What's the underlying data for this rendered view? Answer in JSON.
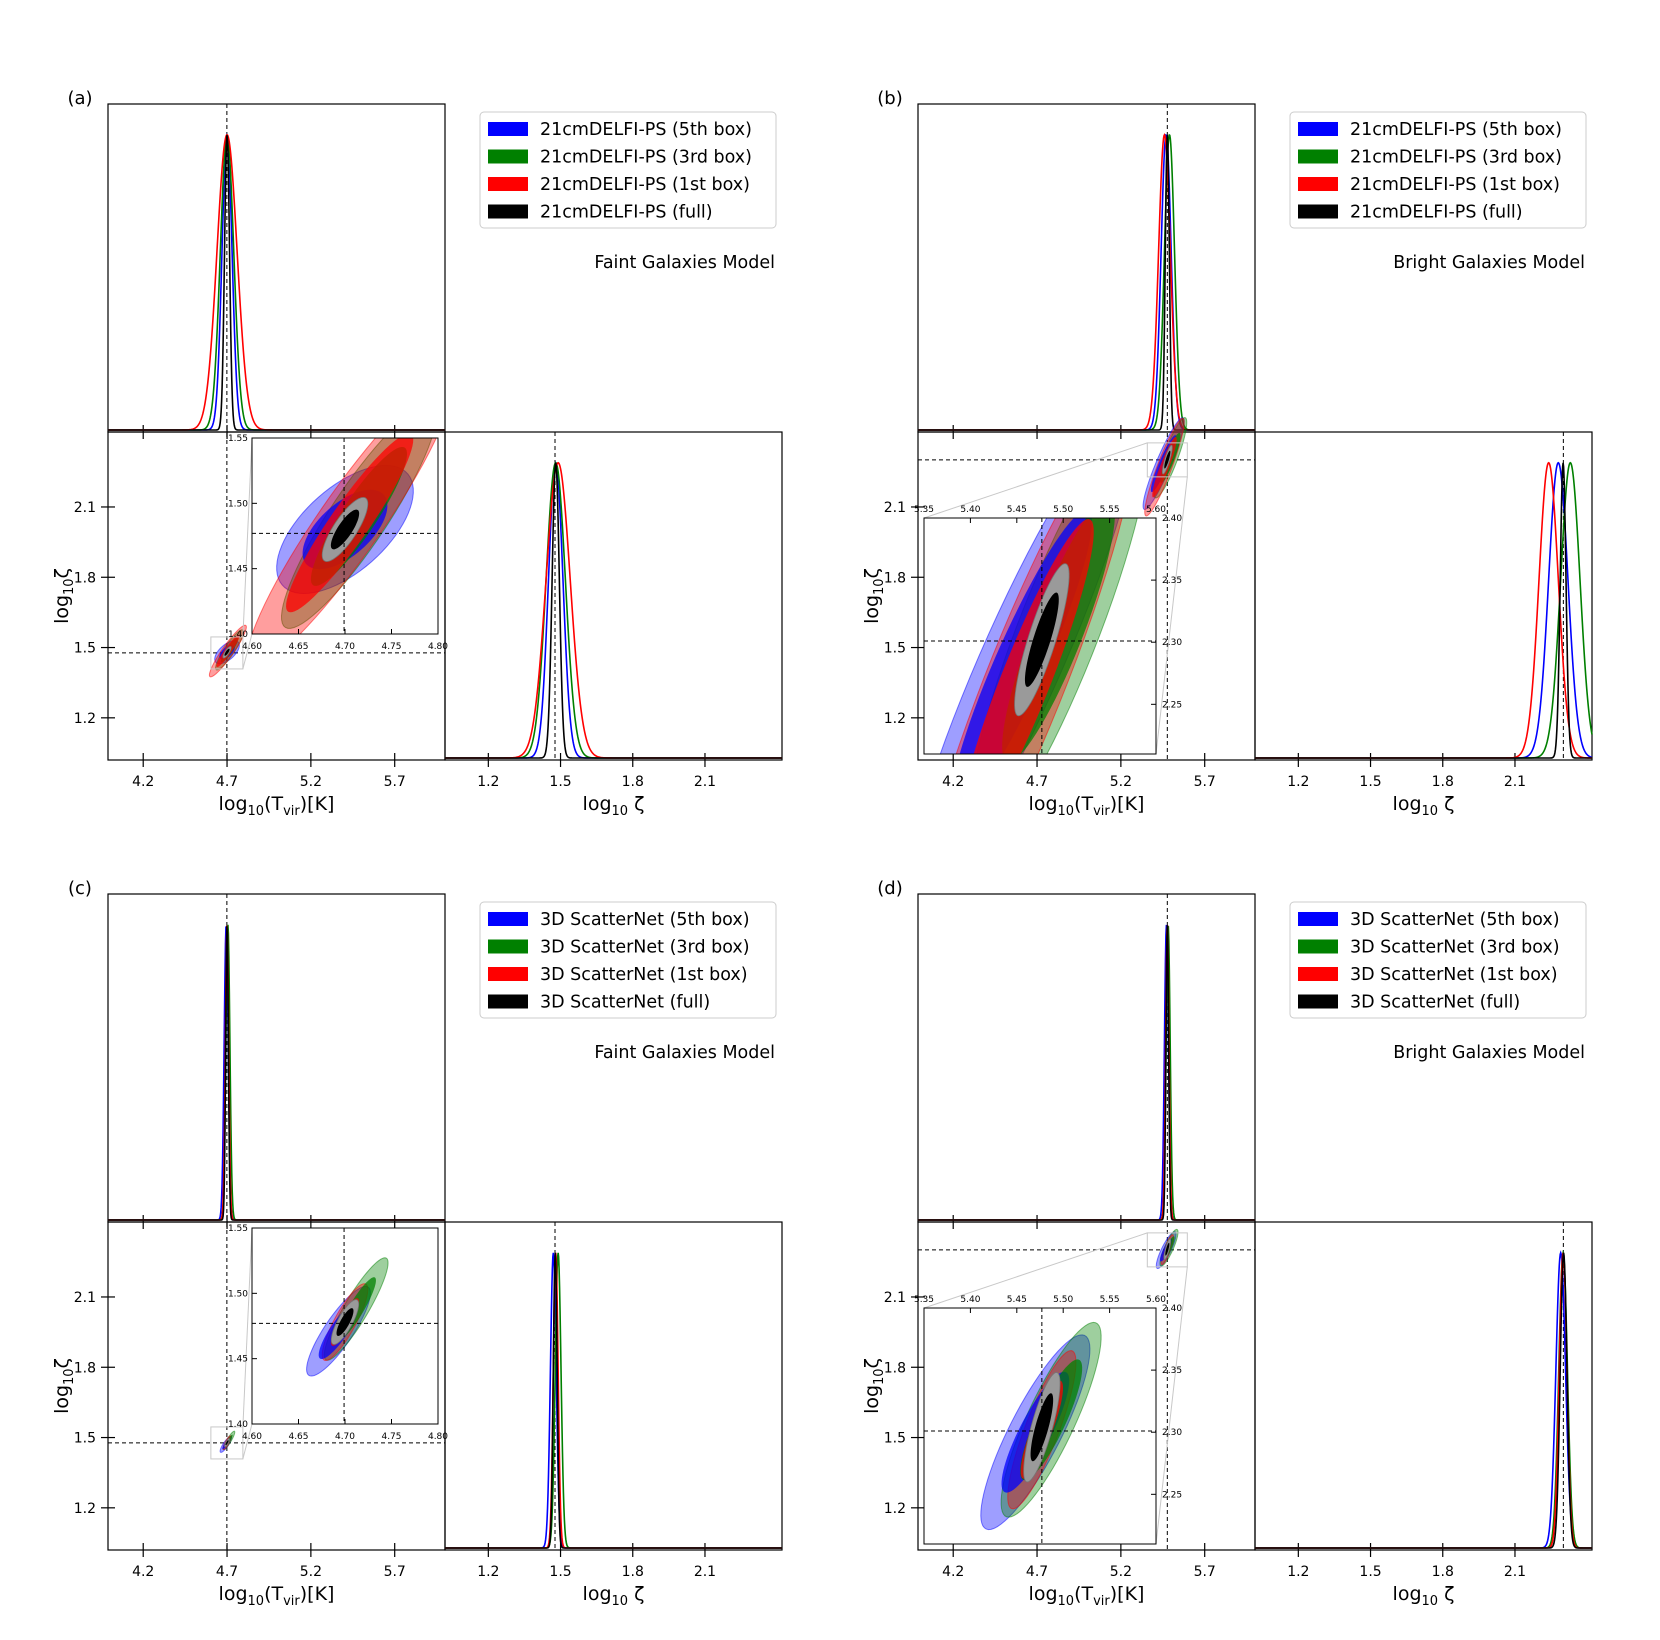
{
  "chart_data": [
    {
      "type": "corner",
      "panel": "(a)",
      "model_label": "Faint Galaxies Model",
      "legend": [
        {
          "label": "21cmDELFI-PS (5th box)",
          "color": "#0000ff"
        },
        {
          "label": "21cmDELFI-PS (3rd box)",
          "color": "#008000"
        },
        {
          "label": "21cmDELFI-PS (1st box)",
          "color": "#ff0000"
        },
        {
          "label": "21cmDELFI-PS (full)",
          "color": "#000000"
        }
      ],
      "xlabel_tvir": "log10(Tvir)[K]",
      "xlabel_zeta": "log10 ζ",
      "ylabel_zeta": "log10 ζ",
      "tvir_ticks": [
        "4.2",
        "4.7",
        "5.2",
        "5.7"
      ],
      "zeta_ticks": [
        "1.2",
        "1.5",
        "1.8",
        "2.1"
      ],
      "tvir_range": [
        3.99,
        6.0
      ],
      "zeta_range": [
        1.02,
        2.42
      ],
      "truth": {
        "log10_Tvir": 4.699,
        "log10_zeta": 1.477
      },
      "tvir_posteriors": [
        {
          "series": "5th box",
          "mean": 4.7,
          "sigma": 0.03
        },
        {
          "series": "3rd box",
          "mean": 4.7,
          "sigma": 0.04
        },
        {
          "series": "1st box",
          "mean": 4.7,
          "sigma": 0.06
        },
        {
          "series": "full",
          "mean": 4.7,
          "sigma": 0.015
        }
      ],
      "zeta_posteriors": [
        {
          "series": "5th box",
          "mean": 1.48,
          "sigma": 0.03
        },
        {
          "series": "3rd box",
          "mean": 1.48,
          "sigma": 0.04
        },
        {
          "series": "1st box",
          "mean": 1.49,
          "sigma": 0.05
        },
        {
          "series": "full",
          "mean": 1.48,
          "sigma": 0.015
        }
      ],
      "inset": {
        "xticks": [
          "4.60",
          "4.65",
          "4.70",
          "4.75",
          "4.80"
        ],
        "yticks": [
          "1.40",
          "1.45",
          "1.50",
          "1.55"
        ],
        "xrange": [
          4.6,
          4.8
        ],
        "yrange": [
          1.4,
          1.55
        ],
        "tick_side": "left",
        "truth": {
          "x": 4.699,
          "y": 1.477
        },
        "ellipses": [
          {
            "series": "5th box",
            "color": "#0000ff",
            "cx": 4.7,
            "cy": 1.48,
            "sx": 0.03,
            "sy": 0.02,
            "rho": 0.6
          },
          {
            "series": "3rd box",
            "color": "#008000",
            "cx": 4.715,
            "cy": 1.49,
            "sx": 0.034,
            "sy": 0.035,
            "rho": 0.9
          },
          {
            "series": "1st box",
            "color": "#ff0000",
            "cx": 4.705,
            "cy": 1.485,
            "sx": 0.045,
            "sy": 0.045,
            "rho": 0.93
          },
          {
            "series": "full",
            "color": "#000000",
            "cx": 4.7,
            "cy": 1.48,
            "sx": 0.01,
            "sy": 0.01,
            "rho": 0.8
          }
        ]
      }
    },
    {
      "type": "corner",
      "panel": "(b)",
      "model_label": "Bright Galaxies Model",
      "legend": [
        {
          "label": "21cmDELFI-PS (5th box)",
          "color": "#0000ff"
        },
        {
          "label": "21cmDELFI-PS (3rd box)",
          "color": "#008000"
        },
        {
          "label": "21cmDELFI-PS (1st box)",
          "color": "#ff0000"
        },
        {
          "label": "21cmDELFI-PS (full)",
          "color": "#000000"
        }
      ],
      "xlabel_tvir": "log10(Tvir)[K]",
      "xlabel_zeta": "log10 ζ",
      "ylabel_zeta": "log10 ζ",
      "tvir_ticks": [
        "4.2",
        "4.7",
        "5.2",
        "5.7"
      ],
      "zeta_ticks": [
        "1.2",
        "1.5",
        "1.8",
        "2.1"
      ],
      "tvir_range": [
        3.99,
        6.0
      ],
      "zeta_range": [
        1.02,
        2.42
      ],
      "truth": {
        "log10_Tvir": 5.477,
        "log10_zeta": 2.301
      },
      "tvir_posteriors": [
        {
          "series": "5th box",
          "mean": 5.47,
          "sigma": 0.03
        },
        {
          "series": "3rd box",
          "mean": 5.49,
          "sigma": 0.03
        },
        {
          "series": "1st box",
          "mean": 5.46,
          "sigma": 0.035
        },
        {
          "series": "full",
          "mean": 5.477,
          "sigma": 0.012
        }
      ],
      "zeta_posteriors": [
        {
          "series": "5th box",
          "mean": 2.28,
          "sigma": 0.04
        },
        {
          "series": "3rd box",
          "mean": 2.33,
          "sigma": 0.04
        },
        {
          "series": "1st box",
          "mean": 2.24,
          "sigma": 0.04
        },
        {
          "series": "full",
          "mean": 2.3,
          "sigma": 0.012
        }
      ],
      "inset": {
        "xticks": [
          "5.35",
          "5.40",
          "5.45",
          "5.50",
          "5.55",
          "5.60"
        ],
        "yticks": [
          "2.25",
          "2.30",
          "2.35",
          "2.40"
        ],
        "xrange": [
          5.35,
          5.6
        ],
        "yrange": [
          2.21,
          2.4
        ],
        "tick_side": "right",
        "truth": {
          "x": 5.477,
          "y": 2.301
        },
        "ellipses": [
          {
            "series": "5th box",
            "color": "#0000ff",
            "cx": 5.455,
            "cy": 2.285,
            "sx": 0.05,
            "sy": 0.08,
            "rho": 0.92
          },
          {
            "series": "3rd box",
            "color": "#008000",
            "cx": 5.495,
            "cy": 2.31,
            "sx": 0.04,
            "sy": 0.07,
            "rho": 0.88
          },
          {
            "series": "1st box",
            "color": "#ff0000",
            "cx": 5.46,
            "cy": 2.27,
            "sx": 0.048,
            "sy": 0.085,
            "rho": 0.92
          },
          {
            "series": "full",
            "color": "#000000",
            "cx": 5.477,
            "cy": 2.302,
            "sx": 0.012,
            "sy": 0.025,
            "rho": 0.85
          }
        ]
      }
    },
    {
      "type": "corner",
      "panel": "(c)",
      "model_label": "Faint Galaxies Model",
      "legend": [
        {
          "label": "3D ScatterNet (5th box)",
          "color": "#0000ff"
        },
        {
          "label": "3D ScatterNet (3rd box)",
          "color": "#008000"
        },
        {
          "label": "3D ScatterNet (1st box)",
          "color": "#ff0000"
        },
        {
          "label": "3D ScatterNet (full)",
          "color": "#000000"
        }
      ],
      "xlabel_tvir": "log10(Tvir)[K]",
      "xlabel_zeta": "log10 ζ",
      "ylabel_zeta": "log10 ζ",
      "tvir_ticks": [
        "4.2",
        "4.7",
        "5.2",
        "5.7"
      ],
      "zeta_ticks": [
        "1.2",
        "1.5",
        "1.8",
        "2.1"
      ],
      "tvir_range": [
        3.99,
        6.0
      ],
      "zeta_range": [
        1.02,
        2.42
      ],
      "truth": {
        "log10_Tvir": 4.699,
        "log10_zeta": 1.477
      },
      "tvir_posteriors": [
        {
          "series": "5th box",
          "mean": 4.695,
          "sigma": 0.012
        },
        {
          "series": "3rd box",
          "mean": 4.705,
          "sigma": 0.012
        },
        {
          "series": "1st box",
          "mean": 4.7,
          "sigma": 0.01
        },
        {
          "series": "full",
          "mean": 4.7,
          "sigma": 0.008
        }
      ],
      "zeta_posteriors": [
        {
          "series": "5th box",
          "mean": 1.47,
          "sigma": 0.012
        },
        {
          "series": "3rd box",
          "mean": 1.49,
          "sigma": 0.012
        },
        {
          "series": "1st box",
          "mean": 1.48,
          "sigma": 0.01
        },
        {
          "series": "full",
          "mean": 1.478,
          "sigma": 0.008
        }
      ],
      "inset": {
        "xticks": [
          "4.60",
          "4.65",
          "4.70",
          "4.75",
          "4.80"
        ],
        "yticks": [
          "1.40",
          "1.45",
          "1.50",
          "1.55"
        ],
        "xrange": [
          4.6,
          4.8
        ],
        "yrange": [
          1.4,
          1.55
        ],
        "tick_side": "left",
        "truth": {
          "x": 4.699,
          "y": 1.477
        },
        "ellipses": [
          {
            "series": "5th box",
            "color": "#0000ff",
            "cx": 4.693,
            "cy": 1.471,
            "sx": 0.014,
            "sy": 0.014,
            "rho": 0.85
          },
          {
            "series": "3rd box",
            "color": "#008000",
            "cx": 4.712,
            "cy": 1.488,
            "sx": 0.014,
            "sy": 0.016,
            "rho": 0.9
          },
          {
            "series": "1st box",
            "color": "#ff0000",
            "cx": 4.7,
            "cy": 1.478,
            "sx": 0.01,
            "sy": 0.012,
            "rho": 0.85
          },
          {
            "series": "full",
            "color": "#000000",
            "cx": 4.7,
            "cy": 1.478,
            "sx": 0.006,
            "sy": 0.007,
            "rho": 0.8
          }
        ]
      }
    },
    {
      "type": "corner",
      "panel": "(d)",
      "model_label": "Bright Galaxies Model",
      "legend": [
        {
          "label": "3D ScatterNet (5th box)",
          "color": "#0000ff"
        },
        {
          "label": "3D ScatterNet (3rd box)",
          "color": "#008000"
        },
        {
          "label": "3D ScatterNet (1st box)",
          "color": "#ff0000"
        },
        {
          "label": "3D ScatterNet (full)",
          "color": "#000000"
        }
      ],
      "xlabel_tvir": "log10(Tvir)[K]",
      "xlabel_zeta": "log10 ζ",
      "ylabel_zeta": "log10 ζ",
      "tvir_ticks": [
        "4.2",
        "4.7",
        "5.2",
        "5.7"
      ],
      "zeta_ticks": [
        "1.2",
        "1.5",
        "1.8",
        "2.1"
      ],
      "tvir_range": [
        3.99,
        6.0
      ],
      "zeta_range": [
        1.02,
        2.42
      ],
      "truth": {
        "log10_Tvir": 5.477,
        "log10_zeta": 2.301
      },
      "tvir_posteriors": [
        {
          "series": "5th box",
          "mean": 5.472,
          "sigma": 0.012
        },
        {
          "series": "3rd box",
          "mean": 5.482,
          "sigma": 0.012
        },
        {
          "series": "1st box",
          "mean": 5.477,
          "sigma": 0.01
        },
        {
          "series": "full",
          "mean": 5.477,
          "sigma": 0.008
        }
      ],
      "zeta_posteriors": [
        {
          "series": "5th box",
          "mean": 2.29,
          "sigma": 0.02
        },
        {
          "series": "3rd box",
          "mean": 2.3,
          "sigma": 0.018
        },
        {
          "series": "1st box",
          "mean": 2.3,
          "sigma": 0.016
        },
        {
          "series": "full",
          "mean": 2.302,
          "sigma": 0.014
        }
      ],
      "inset": {
        "xticks": [
          "5.35",
          "5.40",
          "5.45",
          "5.50",
          "5.55",
          "5.60"
        ],
        "yticks": [
          "2.25",
          "2.30",
          "2.35",
          "2.40"
        ],
        "xrange": [
          5.35,
          5.6
        ],
        "yrange": [
          2.21,
          2.4
        ],
        "tick_side": "right",
        "truth": {
          "x": 5.477,
          "y": 2.301
        },
        "ellipses": [
          {
            "series": "5th box",
            "color": "#0000ff",
            "cx": 5.47,
            "cy": 2.3,
            "sx": 0.024,
            "sy": 0.032,
            "rho": 0.85
          },
          {
            "series": "3rd box",
            "color": "#008000",
            "cx": 5.487,
            "cy": 2.31,
            "sx": 0.022,
            "sy": 0.032,
            "rho": 0.85
          },
          {
            "series": "1st box",
            "color": "#ff0000",
            "cx": 5.477,
            "cy": 2.302,
            "sx": 0.015,
            "sy": 0.026,
            "rho": 0.85
          },
          {
            "series": "full",
            "color": "#000000",
            "cx": 5.477,
            "cy": 2.304,
            "sx": 0.008,
            "sy": 0.018,
            "rho": 0.8
          }
        ]
      }
    }
  ]
}
